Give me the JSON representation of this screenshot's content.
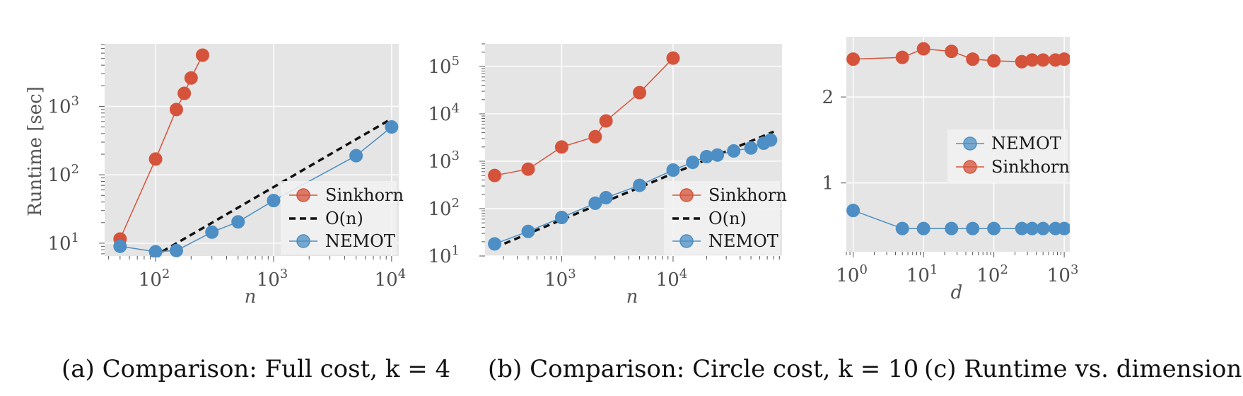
{
  "colors": {
    "sinkhorn": "#d5533b",
    "nemot": "#4d8fc4",
    "on_line": "#111111",
    "panel_bg": "#e5e5e5",
    "grid": "#ffffff"
  },
  "chart_data": [
    {
      "type": "line",
      "caption": "(a) Comparison: Full cost, k = 4",
      "xlabel": "n",
      "ylabel": "Runtime [sec]",
      "xscale": "log",
      "yscale": "log",
      "xlim": [
        37,
        11500
      ],
      "ylim": [
        6.5,
        8200
      ],
      "x_ticks": [
        {
          "value": 100,
          "base": "10",
          "exp": "2"
        },
        {
          "value": 1000,
          "base": "10",
          "exp": "3"
        },
        {
          "value": 10000,
          "base": "10",
          "exp": "4"
        }
      ],
      "y_ticks": [
        {
          "value": 10,
          "base": "10",
          "exp": "1"
        },
        {
          "value": 100,
          "base": "10",
          "exp": "2"
        },
        {
          "value": 1000,
          "base": "10",
          "exp": "3"
        }
      ],
      "grid": true,
      "legend_position": "lower-right",
      "series": [
        {
          "name": "Sinkhorn",
          "color_key": "sinkhorn",
          "style": "marker-line",
          "x": [
            50,
            100,
            150,
            175,
            200,
            250
          ],
          "y": [
            11.5,
            170,
            900,
            1550,
            2600,
            5600
          ]
        },
        {
          "name": "O(n)",
          "color_key": "on_line",
          "style": "dashed",
          "x": [
            95,
            10000
          ],
          "y": [
            6.3,
            660
          ]
        },
        {
          "name": "NEMOT",
          "color_key": "nemot",
          "style": "marker-line",
          "x": [
            50,
            100,
            150,
            300,
            500,
            1000,
            5000,
            10000
          ],
          "y": [
            9,
            7.5,
            7.8,
            14.5,
            20.5,
            42,
            190,
            500
          ]
        }
      ],
      "legend": [
        {
          "label": "Sinkhorn",
          "style": "marker-line",
          "color_key": "sinkhorn"
        },
        {
          "label": "O(n)",
          "style": "dashed",
          "color_key": "on_line"
        },
        {
          "label": "NEMOT",
          "style": "marker-line",
          "color_key": "nemot"
        }
      ]
    },
    {
      "type": "line",
      "caption": "(b) Comparison: Circle cost, k = 10",
      "xlabel": "n",
      "ylabel": "",
      "xscale": "log",
      "yscale": "log",
      "xlim": [
        205,
        95000
      ],
      "ylim": [
        10,
        300000
      ],
      "x_ticks": [
        {
          "value": 1000,
          "base": "10",
          "exp": "3"
        },
        {
          "value": 10000,
          "base": "10",
          "exp": "4"
        }
      ],
      "y_ticks": [
        {
          "value": 10,
          "base": "10",
          "exp": "1"
        },
        {
          "value": 100,
          "base": "10",
          "exp": "2"
        },
        {
          "value": 1000,
          "base": "10",
          "exp": "3"
        },
        {
          "value": 10000,
          "base": "10",
          "exp": "4"
        },
        {
          "value": 100000,
          "base": "10",
          "exp": "5"
        }
      ],
      "grid": true,
      "legend_position": "lower-right",
      "series": [
        {
          "name": "Sinkhorn",
          "color_key": "sinkhorn",
          "style": "marker-line",
          "x": [
            250,
            500,
            1000,
            2000,
            2500,
            5000,
            10000
          ],
          "y": [
            500,
            680,
            2000,
            3300,
            7100,
            28000,
            150000
          ]
        },
        {
          "name": "O(n)",
          "color_key": "on_line",
          "style": "dashed",
          "x": [
            250,
            80000
          ],
          "y": [
            15,
            4200
          ]
        },
        {
          "name": "NEMOT",
          "color_key": "nemot",
          "style": "marker-line",
          "x": [
            250,
            500,
            1000,
            2000,
            2500,
            5000,
            10000,
            15000,
            20000,
            25000,
            35000,
            50000,
            65000,
            75000
          ],
          "y": [
            18,
            33,
            65,
            130,
            170,
            310,
            650,
            950,
            1250,
            1350,
            1650,
            1900,
            2400,
            2800
          ]
        }
      ],
      "legend": [
        {
          "label": "Sinkhorn",
          "style": "marker-line",
          "color_key": "sinkhorn"
        },
        {
          "label": "O(n)",
          "style": "dashed",
          "color_key": "on_line"
        },
        {
          "label": "NEMOT",
          "style": "marker-line",
          "color_key": "nemot"
        }
      ]
    },
    {
      "type": "line",
      "caption": "(c) Runtime vs. dimension.",
      "xlabel": "d",
      "ylabel": "",
      "xscale": "log",
      "yscale": "linear",
      "xlim": [
        0.8,
        1200
      ],
      "ylim": [
        0.2,
        2.7
      ],
      "x_ticks": [
        {
          "value": 1,
          "base": "10",
          "exp": "0"
        },
        {
          "value": 10,
          "base": "10",
          "exp": "1"
        },
        {
          "value": 100,
          "base": "10",
          "exp": "2"
        },
        {
          "value": 1000,
          "base": "10",
          "exp": "3"
        }
      ],
      "y_ticks": [
        {
          "value": 1,
          "label": "1"
        },
        {
          "value": 2,
          "label": "2"
        }
      ],
      "grid": true,
      "legend_position": "center-right",
      "series": [
        {
          "name": "NEMOT",
          "color_key": "nemot",
          "style": "marker-line",
          "x": [
            1,
            5,
            10,
            25,
            50,
            100,
            250,
            350,
            500,
            750,
            1000
          ],
          "y": [
            0.68,
            0.47,
            0.47,
            0.47,
            0.47,
            0.47,
            0.47,
            0.47,
            0.47,
            0.47,
            0.47
          ]
        },
        {
          "name": "Sinkhorn",
          "color_key": "sinkhorn",
          "style": "marker-line",
          "x": [
            1,
            5,
            10,
            25,
            50,
            100,
            250,
            350,
            500,
            750,
            1000
          ],
          "y": [
            2.44,
            2.46,
            2.56,
            2.53,
            2.44,
            2.42,
            2.41,
            2.43,
            2.43,
            2.43,
            2.44
          ]
        }
      ],
      "legend": [
        {
          "label": "NEMOT",
          "style": "marker-line",
          "color_key": "nemot"
        },
        {
          "label": "Sinkhorn",
          "style": "marker-line",
          "color_key": "sinkhorn"
        }
      ]
    }
  ]
}
